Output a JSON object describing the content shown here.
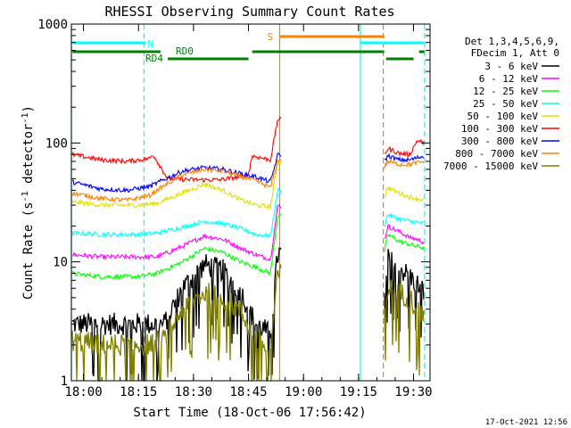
{
  "chart_data": {
    "type": "line",
    "title": "RHESSI Observing Summary Count Rates",
    "xlabel": "Start Time (18-Oct-06 17:56:42)",
    "ylabel_main": "Count Rate (s",
    "ylabel_sup1": "-1",
    "ylabel_mid": " detector",
    "ylabel_sup2": "-1",
    "ylabel_end": ")",
    "y_scale": "log",
    "ylim": [
      1,
      1000
    ],
    "xlim": [
      "17:56:42",
      "19:34:30"
    ],
    "x_ticks": [
      {
        "t": "18:00",
        "label": "18:00"
      },
      {
        "t": "18:15",
        "label": "18:15"
      },
      {
        "t": "18:30",
        "label": "18:30"
      },
      {
        "t": "18:45",
        "label": "18:45"
      },
      {
        "t": "19:00",
        "label": "19:00"
      },
      {
        "t": "19:15",
        "label": "19:15"
      },
      {
        "t": "19:30",
        "label": "19:30"
      }
    ],
    "y_ticks": [
      {
        "v": 1,
        "label": "1"
      },
      {
        "v": 10,
        "label": "10"
      },
      {
        "v": 100,
        "label": "100"
      },
      {
        "v": 1000,
        "label": "1000"
      }
    ],
    "legend_header": [
      "Det 1,3,4,5,6,9,",
      "FDecim 1, Att 0"
    ],
    "legend_placement": "right",
    "flags": {
      "N_label": "N",
      "S_label": "S",
      "RD0_label": "RD0",
      "RD4_label": "RD4",
      "N_segments": [
        [
          "17:57:00",
          "18:17:00"
        ],
        [
          "19:15:30",
          "19:33:00"
        ]
      ],
      "S_segments": [
        [
          "18:53:30",
          "19:22:00"
        ]
      ],
      "RD0_segments": [
        [
          "17:57:00",
          "18:21:00"
        ],
        [
          "18:46:00",
          "19:22:00"
        ],
        [
          "19:31:30",
          "19:33:00"
        ]
      ],
      "RD4_segments": [
        [
          "18:23:00",
          "18:45:00"
        ],
        [
          "19:22:30",
          "19:30:00"
        ]
      ],
      "N_color": "#00ffff",
      "S_color": "#ff8000",
      "RD_color": "#008000"
    },
    "event_lines": [
      {
        "t": "17:56:42",
        "style": "solid",
        "color": "#00ffff"
      },
      {
        "t": "18:16:30",
        "style": "dashed",
        "color": "#00ffff"
      },
      {
        "t": "18:53:30",
        "style": "solid",
        "color": "#ff8000"
      },
      {
        "t": "19:15:30",
        "style": "solid",
        "color": "#00ffff"
      },
      {
        "t": "19:21:45",
        "style": "dashed",
        "color": "#ff8000"
      },
      {
        "t": "19:33:00",
        "style": "dashed",
        "color": "#00ffff"
      }
    ],
    "data_gaps": [
      [
        "18:53:30",
        "19:22:00"
      ]
    ],
    "series": [
      {
        "name": "3 - 6 keV",
        "color": "#000000",
        "points": [
          [
            "17:56:42",
            3.0
          ],
          [
            "18:05",
            3.0
          ],
          [
            "18:16",
            3.0
          ],
          [
            "18:22",
            3.0
          ],
          [
            "18:27",
            6.0
          ],
          [
            "18:33",
            9.5
          ],
          [
            "18:38",
            8.5
          ],
          [
            "18:43",
            5.5
          ],
          [
            "18:47",
            3.0
          ],
          [
            "18:51",
            2.5
          ],
          [
            "18:53",
            12
          ],
          [
            "19:22",
            4.5
          ],
          [
            "19:23",
            10.5
          ],
          [
            "19:26",
            9.0
          ],
          [
            "19:29",
            7.5
          ],
          [
            "19:31",
            6.5
          ],
          [
            "19:33",
            5.5
          ]
        ]
      },
      {
        "name": "6 - 12 keV",
        "color": "#ff00ff",
        "points": [
          [
            "17:56:42",
            11.5
          ],
          [
            "18:05",
            11.0
          ],
          [
            "18:15",
            11.0
          ],
          [
            "18:20",
            11.0
          ],
          [
            "18:27",
            13.5
          ],
          [
            "18:33",
            16.5
          ],
          [
            "18:38",
            15.5
          ],
          [
            "18:43",
            13.0
          ],
          [
            "18:47",
            11.5
          ],
          [
            "18:51",
            10.5
          ],
          [
            "18:53",
            30
          ],
          [
            "19:22",
            15
          ],
          [
            "19:23",
            20
          ],
          [
            "19:26",
            18
          ],
          [
            "19:29",
            16
          ],
          [
            "19:31",
            15.5
          ],
          [
            "19:33",
            14.5
          ]
        ]
      },
      {
        "name": "12 - 25 keV",
        "color": "#00ff00",
        "points": [
          [
            "17:56:42",
            8.0
          ],
          [
            "18:05",
            7.5
          ],
          [
            "18:15",
            7.5
          ],
          [
            "18:20",
            8.0
          ],
          [
            "18:27",
            10.0
          ],
          [
            "18:33",
            13.0
          ],
          [
            "18:38",
            12.0
          ],
          [
            "18:43",
            10.0
          ],
          [
            "18:47",
            9.0
          ],
          [
            "18:51",
            8.0
          ],
          [
            "18:53",
            25
          ],
          [
            "19:22",
            12
          ],
          [
            "19:23",
            17
          ],
          [
            "19:26",
            15
          ],
          [
            "19:29",
            14
          ],
          [
            "19:31",
            13.5
          ],
          [
            "19:33",
            13.0
          ]
        ]
      },
      {
        "name": "25 - 50 keV",
        "color": "#00ffff",
        "points": [
          [
            "17:56:42",
            17.5
          ],
          [
            "18:05",
            17.0
          ],
          [
            "18:15",
            17.0
          ],
          [
            "18:20",
            17.5
          ],
          [
            "18:27",
            19.5
          ],
          [
            "18:33",
            22.0
          ],
          [
            "18:38",
            21.0
          ],
          [
            "18:43",
            19.0
          ],
          [
            "18:47",
            17.0
          ],
          [
            "18:51",
            16.5
          ],
          [
            "18:53",
            40
          ],
          [
            "19:22",
            20
          ],
          [
            "19:23",
            25
          ],
          [
            "19:26",
            23
          ],
          [
            "19:29",
            22
          ],
          [
            "19:31",
            21.5
          ],
          [
            "19:33",
            21.0
          ]
        ]
      },
      {
        "name": "50 - 100 keV",
        "color": "#e0e000",
        "points": [
          [
            "17:56:42",
            32
          ],
          [
            "18:05",
            30
          ],
          [
            "18:15",
            30
          ],
          [
            "18:20",
            31
          ],
          [
            "18:27",
            38
          ],
          [
            "18:33",
            45
          ],
          [
            "18:38",
            40
          ],
          [
            "18:43",
            33
          ],
          [
            "18:47",
            30
          ],
          [
            "18:51",
            29
          ],
          [
            "18:53",
            70
          ],
          [
            "19:22",
            35
          ],
          [
            "19:23",
            42
          ],
          [
            "19:26",
            38
          ],
          [
            "19:29",
            35
          ],
          [
            "19:31",
            34
          ],
          [
            "19:33",
            33
          ]
        ]
      },
      {
        "name": "100 - 300 keV",
        "color": "#ff0000",
        "points": [
          [
            "17:56:42",
            80
          ],
          [
            "18:05",
            72
          ],
          [
            "18:12",
            70
          ],
          [
            "18:18",
            74
          ],
          [
            "18:19",
            80
          ],
          [
            "18:23",
            50
          ],
          [
            "18:30",
            49
          ],
          [
            "18:37",
            49
          ],
          [
            "18:43",
            52
          ],
          [
            "18:45",
            55
          ],
          [
            "18:46",
            78
          ],
          [
            "18:51",
            72
          ],
          [
            "18:53",
            160
          ],
          [
            "19:22",
            80
          ],
          [
            "19:23",
            90
          ],
          [
            "19:26",
            82
          ],
          [
            "19:29",
            80
          ],
          [
            "19:31",
            105
          ],
          [
            "19:33",
            100
          ]
        ]
      },
      {
        "name": "300 - 800 keV",
        "color": "#0000ff",
        "points": [
          [
            "17:56:42",
            47
          ],
          [
            "18:05",
            41
          ],
          [
            "18:12",
            40
          ],
          [
            "18:18",
            43
          ],
          [
            "18:20",
            46
          ],
          [
            "18:27",
            58
          ],
          [
            "18:33",
            62
          ],
          [
            "18:38",
            60
          ],
          [
            "18:43",
            55
          ],
          [
            "18:47",
            52
          ],
          [
            "18:51",
            47
          ],
          [
            "18:53",
            80
          ],
          [
            "19:22",
            70
          ],
          [
            "19:23",
            78
          ],
          [
            "19:26",
            72
          ],
          [
            "19:29",
            72
          ],
          [
            "19:31",
            75
          ],
          [
            "19:33",
            78
          ]
        ]
      },
      {
        "name": "800 - 7000 keV",
        "color": "#ff8000",
        "points": [
          [
            "17:56:42",
            38
          ],
          [
            "18:05",
            34
          ],
          [
            "18:12",
            33
          ],
          [
            "18:18",
            36
          ],
          [
            "18:20",
            40
          ],
          [
            "18:27",
            54
          ],
          [
            "18:33",
            60
          ],
          [
            "18:38",
            58
          ],
          [
            "18:43",
            52
          ],
          [
            "18:47",
            48
          ],
          [
            "18:51",
            42
          ],
          [
            "18:53",
            72
          ],
          [
            "19:22",
            62
          ],
          [
            "19:23",
            70
          ],
          [
            "19:26",
            66
          ],
          [
            "19:29",
            66
          ],
          [
            "19:31",
            68
          ],
          [
            "19:33",
            70
          ]
        ]
      },
      {
        "name": "7000 - 15000 keV",
        "color": "#808000",
        "points": [
          [
            "17:56:42",
            2.2
          ],
          [
            "18:05",
            2.0
          ],
          [
            "18:16",
            2.0
          ],
          [
            "18:22",
            2.2
          ],
          [
            "18:27",
            4.0
          ],
          [
            "18:33",
            5.5
          ],
          [
            "18:38",
            5.0
          ],
          [
            "18:43",
            3.8
          ],
          [
            "18:47",
            2.2
          ],
          [
            "18:51",
            1.8
          ],
          [
            "18:53",
            8
          ],
          [
            "19:22",
            3.5
          ],
          [
            "19:23",
            6.0
          ],
          [
            "19:26",
            5.5
          ],
          [
            "19:29",
            5.0
          ],
          [
            "19:31",
            4.0
          ],
          [
            "19:33",
            3.5
          ]
        ]
      }
    ]
  },
  "footer_timestamp": "17-Oct-2021 12:56"
}
